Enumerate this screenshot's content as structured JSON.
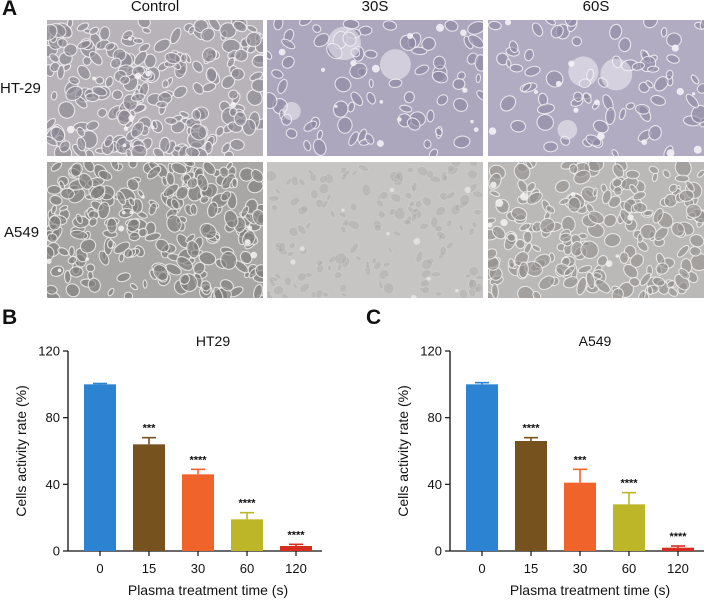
{
  "figure": {
    "panel_a": {
      "letter": "A",
      "columns": [
        "Control",
        "30S",
        "60S"
      ],
      "rows": [
        "HT-29",
        "A549"
      ]
    },
    "panel_b_letter": "B",
    "panel_c_letter": "C"
  },
  "chart_data": [
    {
      "type": "bar",
      "title": "HT29",
      "xlabel": "Plasma treatment time (s)",
      "ylabel": "Cells activity rate (%)",
      "categories": [
        "0",
        "15",
        "30",
        "60",
        "120"
      ],
      "values": [
        100,
        64,
        46,
        19,
        3
      ],
      "errors": [
        0.5,
        4,
        3,
        4,
        1
      ],
      "significance": [
        "",
        "***",
        "****",
        "****",
        "****"
      ],
      "colors": [
        "#2b83d1",
        "#76521f",
        "#f0632a",
        "#bdb629",
        "#d62d1f"
      ],
      "ylim": [
        0,
        120
      ],
      "yticks": [
        0,
        40,
        80,
        120
      ]
    },
    {
      "type": "bar",
      "title": "A549",
      "xlabel": "Plasma treatment time (s)",
      "ylabel": "Cells activity rate (%)",
      "categories": [
        "0",
        "15",
        "30",
        "60",
        "120"
      ],
      "values": [
        100,
        66,
        41,
        28,
        2
      ],
      "errors": [
        1,
        2,
        8,
        7,
        1
      ],
      "significance": [
        "",
        "****",
        "***",
        "****",
        "****"
      ],
      "colors": [
        "#2b83d1",
        "#76521f",
        "#f0632a",
        "#bdb629",
        "#d62d1f"
      ],
      "ylim": [
        0,
        120
      ],
      "yticks": [
        0,
        40,
        80,
        120
      ]
    }
  ]
}
